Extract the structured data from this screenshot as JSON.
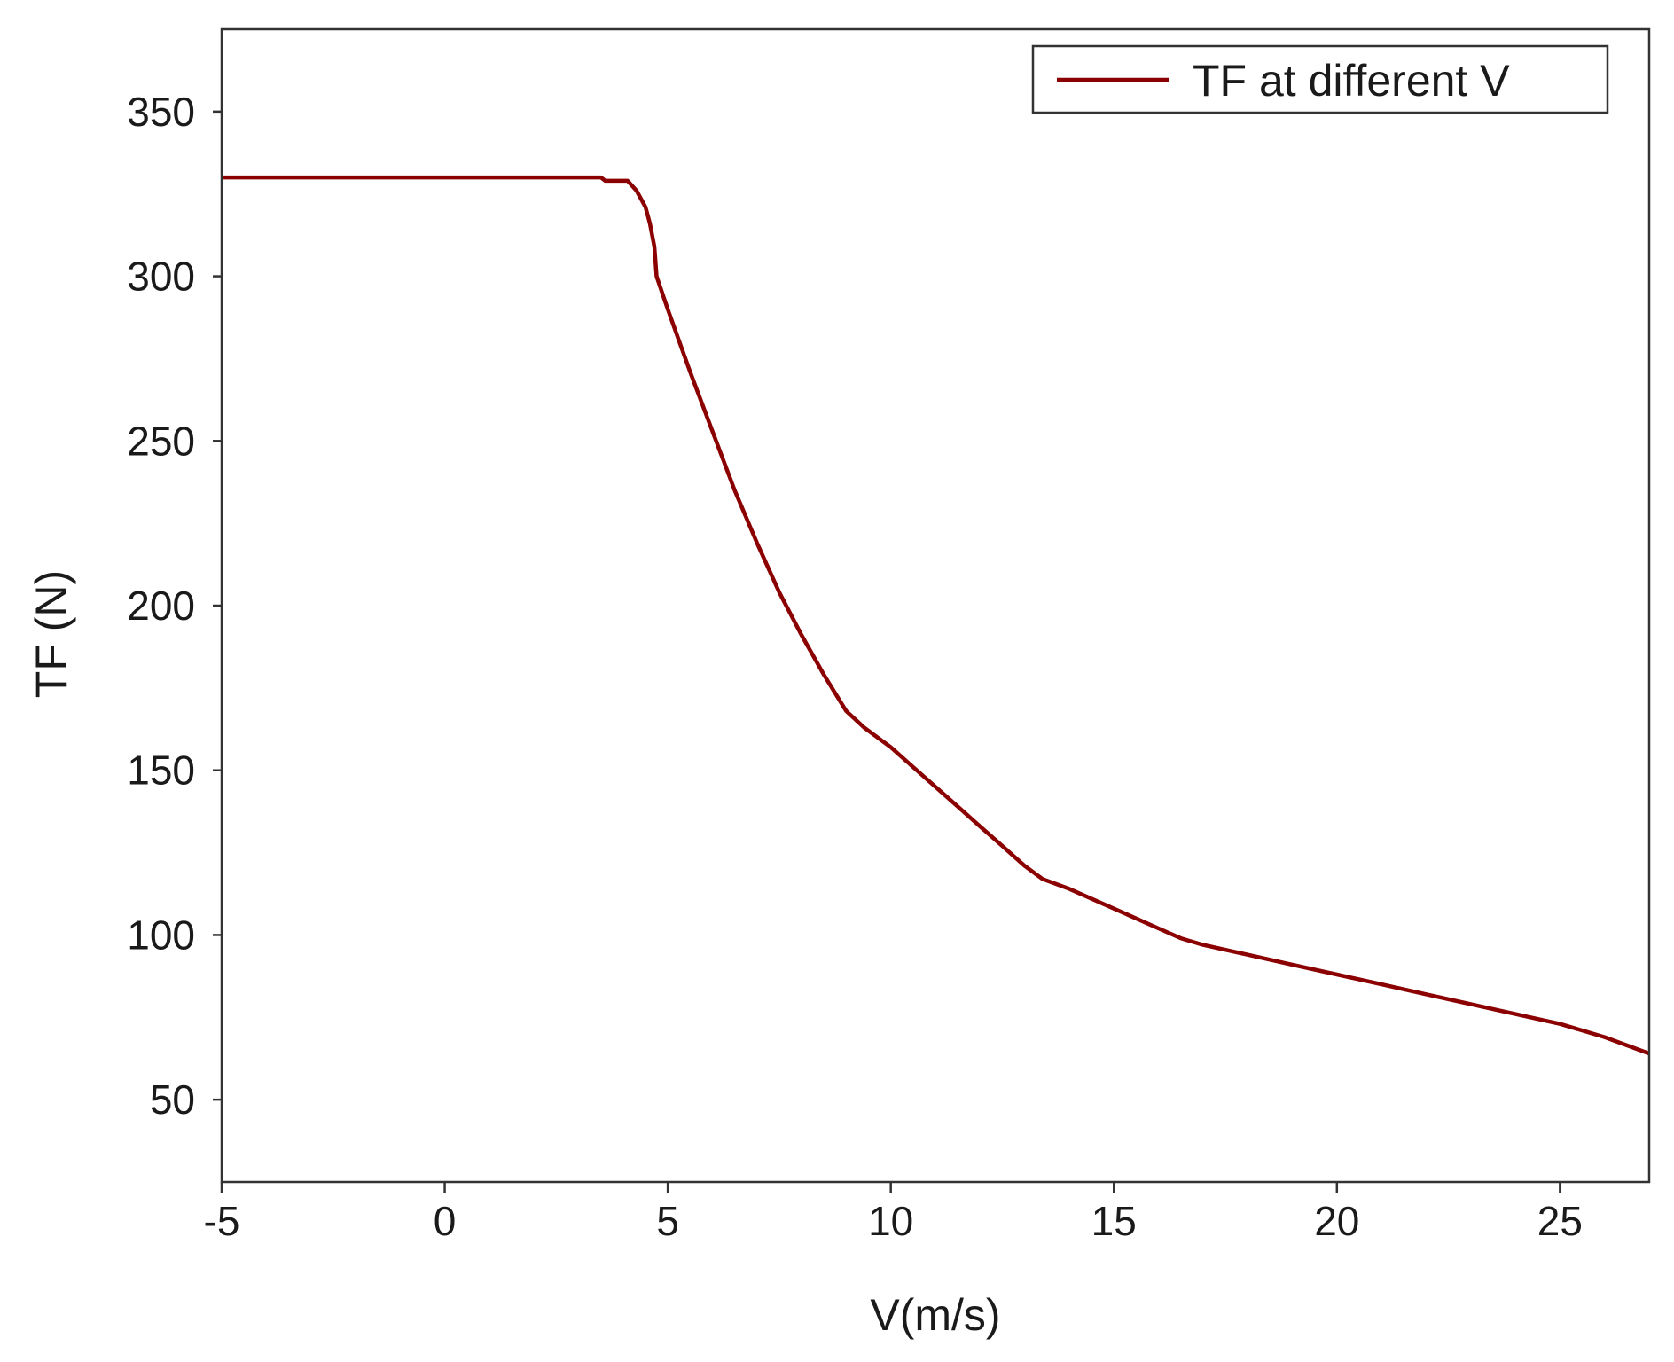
{
  "chart_data": {
    "type": "line",
    "title": "",
    "xlabel": "V(m/s)",
    "ylabel": "TF (N)",
    "xlim": [
      -5,
      27
    ],
    "ylim": [
      25,
      375
    ],
    "xticks": [
      -5,
      0,
      5,
      10,
      15,
      20,
      25
    ],
    "xtick_labels": [
      "-5",
      "0",
      "5",
      "10",
      "15",
      "20",
      "25"
    ],
    "yticks": [
      50,
      100,
      150,
      200,
      250,
      300,
      350
    ],
    "ytick_labels": [
      "50",
      "100",
      "150",
      "200",
      "250",
      "300",
      "350"
    ],
    "grid": false,
    "legend_position": "top-right",
    "series": [
      {
        "name": "TF at different V",
        "color": "#8b0000",
        "x": [
          -5,
          3.5,
          3.6,
          4.1,
          4.3,
          4.5,
          4.6,
          4.7,
          4.75,
          5.0,
          5.5,
          6.0,
          6.5,
          7.0,
          7.5,
          8.0,
          8.5,
          9.0,
          9.4,
          10.0,
          10.5,
          11.0,
          11.5,
          12.0,
          12.5,
          13.0,
          13.4,
          14.0,
          15.0,
          16.0,
          16.5,
          17.0,
          18.0,
          19.0,
          20.0,
          21.0,
          22.0,
          23.0,
          24.0,
          25.0,
          26.0,
          27.0
        ],
        "y": [
          330,
          330,
          329,
          329,
          326,
          321,
          316,
          309,
          300,
          290,
          271,
          253,
          235,
          219,
          204,
          191,
          179,
          168,
          163,
          157,
          151,
          145,
          139,
          133,
          127,
          121,
          117,
          114,
          108,
          102,
          99,
          97,
          94,
          91,
          88,
          85,
          82,
          79,
          76,
          73,
          69,
          64
        ]
      }
    ]
  }
}
